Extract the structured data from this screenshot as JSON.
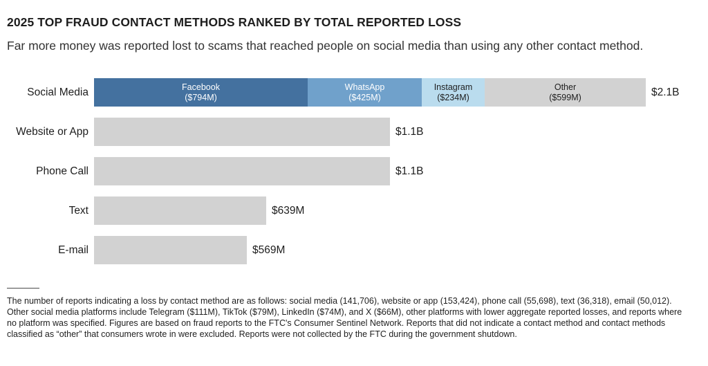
{
  "header": {
    "title": "2025 TOP FRAUD CONTACT METHODS RANKED BY TOTAL REPORTED LOSS",
    "subtitle": "Far more money was reported lost to scams that reached people on social media than using any other contact method."
  },
  "chart_data": {
    "type": "bar",
    "orientation": "horizontal",
    "unit": "USD millions reported loss",
    "value_axis": "hidden (values shown as labels)",
    "grid": false,
    "legend": "none (segments labeled inline)",
    "categories": [
      "Social Media",
      "Website or App",
      "Phone Call",
      "Text",
      "E-mail"
    ],
    "rows": [
      {
        "label": "Social Media",
        "total_label": "$2.1B",
        "total_value_musd": 2052,
        "segments": [
          {
            "name": "Facebook",
            "value_label": "($794M)",
            "value_musd": 794,
            "color": "#44719F",
            "text_color": "#ffffff"
          },
          {
            "name": "WhatsApp",
            "value_label": "($425M)",
            "value_musd": 425,
            "color": "#70A1CB",
            "text_color": "#ffffff"
          },
          {
            "name": "Instagram",
            "value_label": "($234M)",
            "value_musd": 234,
            "color": "#BADCEE",
            "text_color": "#1d1d1d"
          },
          {
            "name": "Other",
            "value_label": "($599M)",
            "value_musd": 599,
            "color": "#D2D2D2",
            "text_color": "#1d1d1d"
          }
        ]
      },
      {
        "label": "Website or App",
        "total_label": "$1.1B",
        "total_value_musd": 1100,
        "segments": [
          {
            "value_musd": 1100,
            "color": "#D2D2D2"
          }
        ]
      },
      {
        "label": "Phone Call",
        "total_label": "$1.1B",
        "total_value_musd": 1100,
        "segments": [
          {
            "value_musd": 1100,
            "color": "#D2D2D2"
          }
        ]
      },
      {
        "label": "Text",
        "total_label": "$639M",
        "total_value_musd": 639,
        "segments": [
          {
            "value_musd": 639,
            "color": "#D2D2D2"
          }
        ]
      },
      {
        "label": "E-mail",
        "total_label": "$569M",
        "total_value_musd": 569,
        "segments": [
          {
            "value_musd": 569,
            "color": "#D2D2D2"
          }
        ]
      }
    ]
  },
  "footnote": {
    "lines": [
      "The number of reports indicating a loss by contact method are as follows: social media (141,706), website or app (153,424), phone call (55,698), text (36,318), email (50,012).",
      "Other social media platforms include Telegram ($111M), TikTok ($79M), LinkedIn ($74M), and X ($66M), other platforms with lower aggregate reported losses, and reports where",
      "no platform was specified. Figures are based on fraud reports to the FTC's Consumer Sentinel Network. Reports that did not indicate a contact method and contact methods",
      "classified as “other” that consumers wrote in were excluded. Reports were not collected by the FTC during the government shutdown."
    ]
  },
  "colors": {
    "facebook_blue": "#44719F",
    "whatsapp_blue": "#70A1CB",
    "instagram_light_blue": "#BADCEE",
    "neutral_gray": "#D2D2D2",
    "text_dark": "#1d1d1d",
    "background": "#ffffff"
  }
}
